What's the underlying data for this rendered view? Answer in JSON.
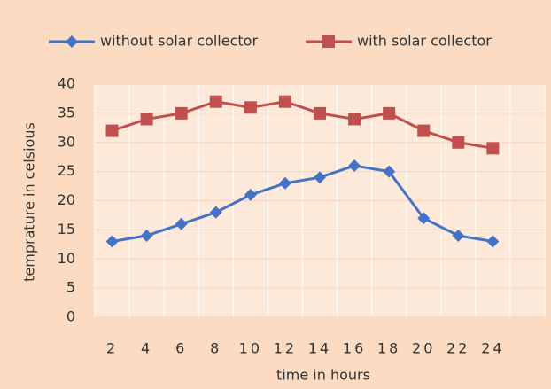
{
  "chart_data": {
    "type": "line",
    "categories": [
      "2",
      "4",
      "6",
      "8",
      "10",
      "12",
      "14",
      "16",
      "18",
      "20",
      "22",
      "24"
    ],
    "series": [
      {
        "name": "without solar collector",
        "color": "#4472c4",
        "marker": "diamond",
        "values": [
          13,
          14,
          16,
          18,
          21,
          23,
          24,
          26,
          25,
          17,
          14,
          13
        ]
      },
      {
        "name": "with solar collector",
        "color": "#c0504d",
        "marker": "square",
        "values": [
          32,
          34,
          35,
          37,
          36,
          37,
          35,
          34,
          35,
          32,
          30,
          29
        ]
      }
    ],
    "ylim": [
      0,
      40
    ],
    "yticks": [
      0,
      5,
      10,
      15,
      20,
      25,
      30,
      35,
      40
    ],
    "y_label": "temprature in celsious",
    "x_label": "time in hours",
    "grid": true,
    "legend": "top"
  }
}
